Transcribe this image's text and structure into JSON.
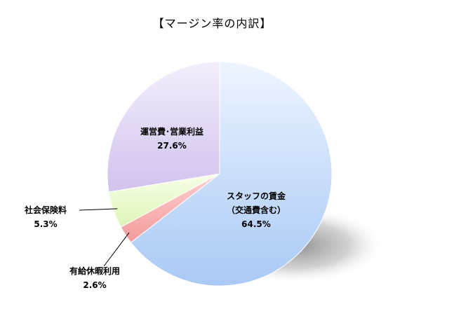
{
  "chart_data": {
    "type": "pie",
    "title": "【マージン率の内訳】",
    "slices": [
      {
        "name": "スタッフの賃金",
        "name2": "（交通費含む）",
        "value": 64.5,
        "label": "64.5%",
        "color": "#b7d3f7"
      },
      {
        "name": "有給休暇利用",
        "value": 2.6,
        "label": "2.6%",
        "color": "#f5a9a9"
      },
      {
        "name": "社会保険料",
        "value": 5.3,
        "label": "5.3%",
        "color": "#e6f9c7"
      },
      {
        "name": "運営費･営業利益",
        "value": 27.6,
        "label": "27.6%",
        "color": "#dccff2"
      }
    ]
  }
}
